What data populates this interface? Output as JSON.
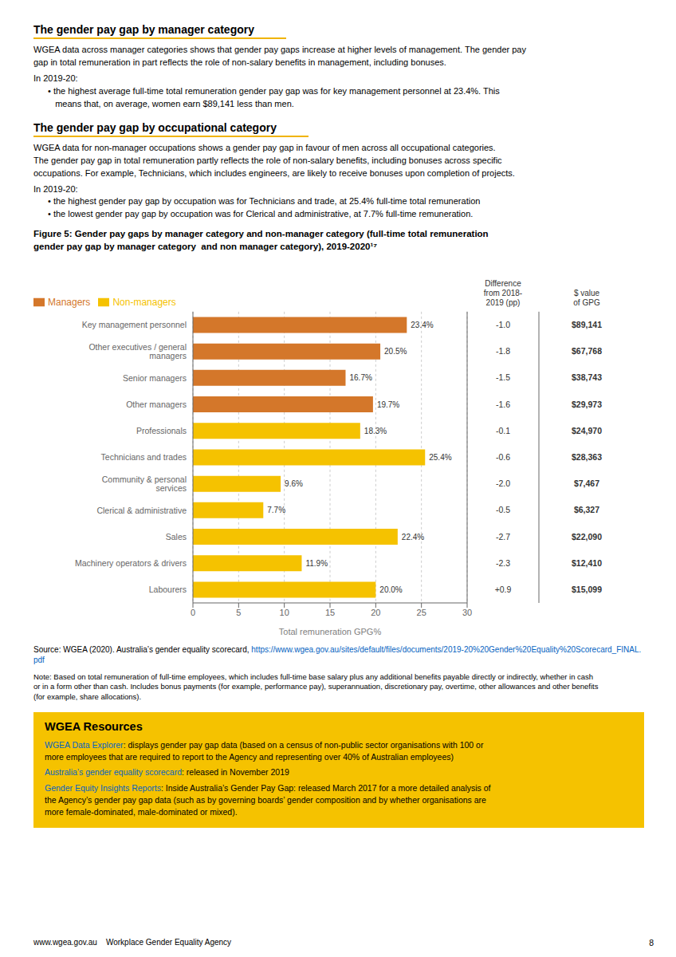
{
  "page": {
    "title1": "The gender pay gap by manager category",
    "title1_underline_color": "#f0b400",
    "para1": "WGEA data across manager categories shows that gender pay gaps increase at higher levels of management. The gender pay\ngap in total remuneration in part reflects the role of non-salary benefits in management, including bonuses.",
    "para1b": "In 2019-20:",
    "bullet1": "• the highest average full-time total remuneration gender pay gap was for key management personnel at 23.4%. This\n   means that, on average, women earn $89,141 less than men.",
    "title2": "The gender pay gap by occupational category",
    "title2_underline_color": "#f0b400",
    "para2": "WGEA data for non-manager occupations shows a gender pay gap in favour of men across all occupational categories.\nThe gender pay gap in total remuneration partly reflects the role of non-salary benefits, including bonuses across specific\noccupations. For example, Technicians, which includes engineers, are likely to receive bonuses upon completion of projects.",
    "para2b": "In 2019-20:",
    "bullet2a": "• the highest gender pay gap by occupation was for Technicians and trade, at 25.4% full-time total remuneration",
    "bullet2b": "• the lowest gender pay gap by occupation was for Clerical and administrative, at 7.7% full-time remuneration.",
    "source_text": "Source: WGEA (2020). Australia’s gender equality scorecard, ",
    "source_link": "https://www.wgea.gov.au/sites/default/files/documents/2019-20%20Gender%20Equality%20Scorecard_FINAL.pdf",
    "link_color": "#0563C1",
    "note_text": "Note: Based on total remuneration of full-time employees, which includes full-time base salary plus any additional benefits payable directly or indirectly, whether in cash\nor in a form other than cash. Includes bonus payments (for example, performance pay), superannuation, discretionary pay, overtime, other allowances and other benefits\n(for example, share allocations).",
    "resources_bg": "#f5c200",
    "resources_title": "WGEA Resources",
    "resources_line1_link": "WGEA Data Explorer",
    "resources_line1_rest": ": displays gender pay gap data (based on a census of non-public sector organisations with 100 or\nmore employees that are required to report to the Agency and representing over 40% of Australian employees)",
    "resources_line2_link": "Australia’s gender equality scorecard",
    "resources_line2_rest": ": released in November 2019",
    "resources_line3_link": "Gender Equity Insights Reports",
    "resources_line3_rest": ": Inside Australia’s Gender Pay Gap: released March 2017 for a more detailed analysis of\nthe Agency’s gender pay gap data (such as by governing boards’ gender composition and by whether organisations are\nmore female-dominated, male-dominated or mixed).",
    "footer_text": "www.wgea.gov.au    Workplace Gender Equality Agency",
    "page_number": "8"
  },
  "chart_data": {
    "type": "bar",
    "orientation": "horizontal",
    "title": "Figure 5: Gender pay gaps by manager category and non-manager category (full-time total remuneration\ngender pay gap by manager category  and non manager category), 2019-2020¹⁷",
    "categories": [
      "Key management personnel",
      "Other executives / general managers",
      "Senior managers",
      "Other managers",
      "Professionals",
      "Technicians and trades",
      "Community & personal services",
      "Clerical & administrative",
      "Sales",
      "Machinery operators & drivers",
      "Labourers"
    ],
    "series": [
      {
        "name": "Managers",
        "color": "#d4772a",
        "values": [
          23.4,
          20.5,
          16.7,
          19.7,
          null,
          null,
          null,
          null,
          null,
          null,
          null
        ],
        "value_labels": [
          "23.4%",
          "20.5%",
          "16.7%",
          "19.7%",
          null,
          null,
          null,
          null,
          null,
          null,
          null
        ]
      },
      {
        "name": "Non-managers",
        "color": "#f5c200",
        "values": [
          null,
          null,
          null,
          null,
          18.3,
          25.4,
          9.6,
          7.7,
          22.4,
          11.9,
          20.0
        ],
        "value_labels": [
          null,
          null,
          null,
          null,
          "18.3%",
          "25.4%",
          "9.6%",
          "7.7%",
          "22.4%",
          "11.9%",
          "20.0%"
        ]
      }
    ],
    "data_labels": true,
    "xlabel": "Total remuneration GPG%",
    "xlim": [
      0,
      30
    ],
    "xticks": [
      0,
      5,
      10,
      15,
      20,
      25,
      30
    ],
    "grid": true,
    "legend": "upper left",
    "differences_header": "Difference\nfrom 2018-\n2019 (pp)",
    "differences": [
      "-1.0",
      "-1.8",
      "-1.5",
      "-1.6",
      "-0.1",
      "-0.6",
      "-2.0",
      "-0.5",
      "-2.7",
      "-2.3",
      "+0.9"
    ],
    "dollar_values_header": "$ value\nof GPG",
    "dollar_values": [
      "$89,141",
      "$67,768",
      "$38,743",
      "$29,973",
      "$24,970",
      "$28,363",
      "$7,467",
      "$6,327",
      "$22,090",
      "$12,410",
      "$15,099"
    ]
  }
}
